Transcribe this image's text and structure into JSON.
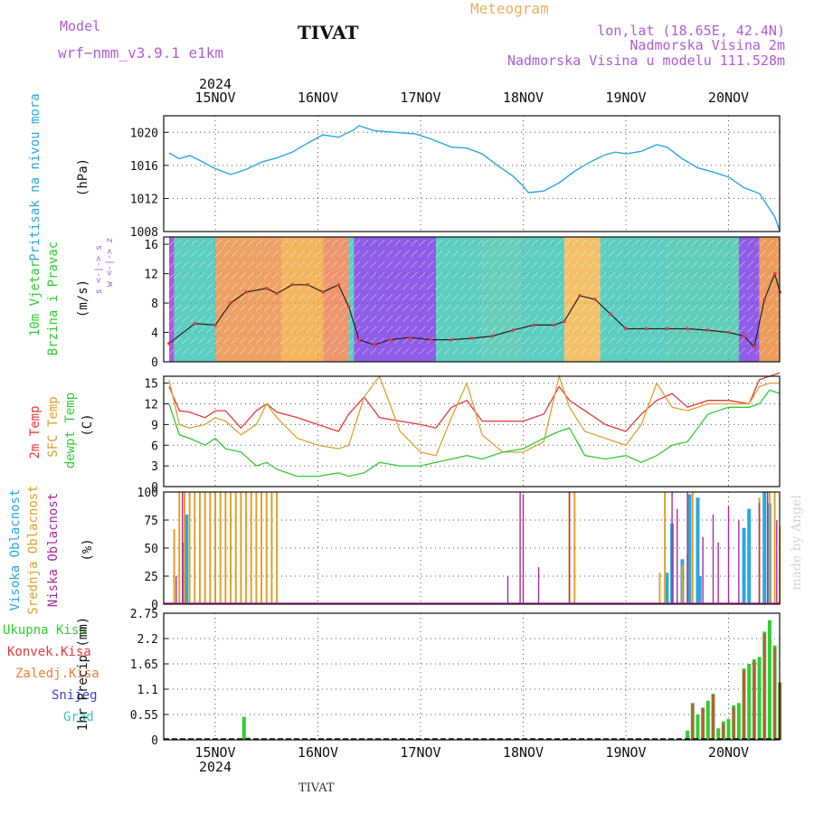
{
  "header": {
    "model_label": "Model",
    "model_name": "wrf−nmm_v3.9.1  e1km",
    "station": "TIVAT",
    "meteogram": "Meteogram",
    "lonlat": "lon,lat (18.65E, 42.4N)",
    "elevation": "Nadmorska Visina 2m",
    "model_elevation": "Nadmorska Visina u modelu 111.528m"
  },
  "footer": {
    "station": "TIVAT",
    "made_by": "made by Angel"
  },
  "colors": {
    "pressure": "#29a8e0",
    "temp2m": "#e8383a",
    "sfc": "#e0a030",
    "dew": "#33cc33",
    "high_cloud": "#29a8e0",
    "mid_cloud": "#e0a030",
    "low_cloud": "#b02aa0",
    "total_precip": "#33cc33",
    "conv_precip": "#e8383a",
    "frozen_precip": "#f07f30",
    "snow": "#3d3de0",
    "graupel": "#3cc8b8",
    "mid_purple": "#b05cd8"
  },
  "time_axis": {
    "year": "2024",
    "labels": [
      "15NOV",
      "16NOV",
      "17NOV",
      "18NOV",
      "19NOV",
      "20NOV"
    ],
    "start_day": 14.55,
    "end_day": 20.5
  },
  "chart_data": [
    {
      "type": "line",
      "panel": "pressure",
      "ylabel_left": "Pritisak na nivou mora",
      "unit": "(hPa)",
      "ylim": [
        1008,
        1022
      ],
      "yticks": [
        "1008",
        "1012",
        "1016",
        "1020"
      ],
      "x_day": [
        14.55,
        14.65,
        14.75,
        14.85,
        15.0,
        15.15,
        15.3,
        15.45,
        15.6,
        15.75,
        15.9,
        16.05,
        16.2,
        16.35,
        16.4,
        16.55,
        16.75,
        16.95,
        17.1,
        17.3,
        17.45,
        17.6,
        17.75,
        17.9,
        18.0,
        18.05,
        18.2,
        18.35,
        18.5,
        18.65,
        18.8,
        18.9,
        19.0,
        19.15,
        19.3,
        19.4,
        19.55,
        19.7,
        19.85,
        20.0,
        20.15,
        20.3,
        20.45,
        20.5
      ],
      "series": [
        {
          "values": [
            1017.5,
            1016.8,
            1017.2,
            1016.6,
            1015.6,
            1014.9,
            1015.5,
            1016.4,
            1016.9,
            1017.6,
            1018.7,
            1019.7,
            1019.4,
            1020.3,
            1020.8,
            1020.2,
            1020.0,
            1019.8,
            1019.2,
            1018.2,
            1018.1,
            1017.4,
            1016.0,
            1014.7,
            1013.5,
            1012.7,
            1012.9,
            1013.9,
            1015.3,
            1016.4,
            1017.3,
            1017.6,
            1017.4,
            1017.7,
            1018.5,
            1018.2,
            1016.8,
            1015.7,
            1015.2,
            1014.6,
            1013.3,
            1012.6,
            1009.8,
            1008.0
          ]
        }
      ]
    },
    {
      "type": "line",
      "panel": "wind",
      "ylabel_left": "10m Vjetar",
      "ylabel_left2": "Brzina i Pravac",
      "unit": "(m/s)",
      "direction_key": "w   <-|->  z",
      "direction_key2": "s <-|-> s",
      "ylim": [
        0,
        17
      ],
      "yticks": [
        "0",
        "4",
        "8",
        "12",
        "16"
      ],
      "x_day": [
        14.55,
        14.8,
        15.0,
        15.15,
        15.3,
        15.5,
        15.6,
        15.75,
        15.9,
        16.05,
        16.2,
        16.3,
        16.4,
        16.55,
        16.7,
        16.9,
        17.1,
        17.3,
        17.5,
        17.7,
        17.9,
        18.1,
        18.3,
        18.4,
        18.55,
        18.7,
        18.85,
        19.0,
        19.2,
        19.4,
        19.6,
        19.8,
        20.0,
        20.15,
        20.25,
        20.35,
        20.45,
        20.5
      ],
      "series": [
        {
          "values": [
            2.5,
            5.2,
            5.0,
            8.0,
            9.5,
            10.0,
            9.3,
            10.5,
            10.5,
            9.5,
            10.5,
            7.5,
            3.0,
            2.3,
            3.0,
            3.3,
            3.0,
            3.0,
            3.2,
            3.5,
            4.3,
            5.0,
            5.0,
            5.5,
            9.0,
            8.5,
            6.5,
            4.5,
            4.5,
            4.5,
            4.5,
            4.3,
            4.0,
            3.5,
            2.0,
            8.5,
            12.0,
            9.5
          ]
        }
      ],
      "color_bands": [
        {
          "from": 14.55,
          "to": 14.6,
          "color": "#9030d0"
        },
        {
          "from": 14.6,
          "to": 15.0,
          "color": "#30c0b0"
        },
        {
          "from": 15.0,
          "to": 15.65,
          "color": "#e8883a"
        },
        {
          "from": 15.65,
          "to": 16.05,
          "color": "#f0a030"
        },
        {
          "from": 16.05,
          "to": 16.3,
          "color": "#e87848"
        },
        {
          "from": 16.3,
          "to": 16.35,
          "color": "#30c0b0"
        },
        {
          "from": 16.35,
          "to": 17.15,
          "color": "#7030e0"
        },
        {
          "from": 17.15,
          "to": 17.6,
          "color": "#30c0b0"
        },
        {
          "from": 17.6,
          "to": 18.0,
          "color": "#3cc0a8"
        },
        {
          "from": 18.0,
          "to": 18.4,
          "color": "#30c0b0"
        },
        {
          "from": 18.4,
          "to": 18.75,
          "color": "#f0b040"
        },
        {
          "from": 18.75,
          "to": 19.4,
          "color": "#30c0b0"
        },
        {
          "from": 19.4,
          "to": 20.1,
          "color": "#35c0a5"
        },
        {
          "from": 20.1,
          "to": 20.3,
          "color": "#7030e0"
        },
        {
          "from": 20.3,
          "to": 20.5,
          "color": "#e88030"
        }
      ]
    },
    {
      "type": "line",
      "panel": "temperature",
      "ylabel_left": "2m Temp",
      "ylabel_left2": "SFC Temp",
      "ylabel_left3": "dewpt Temp",
      "unit": "(C)",
      "ylim": [
        0,
        16
      ],
      "yticks": [
        "0",
        "3",
        "6",
        "9",
        "12",
        "15"
      ],
      "x_day": [
        14.55,
        14.65,
        14.75,
        14.9,
        15.0,
        15.1,
        15.25,
        15.4,
        15.5,
        15.6,
        15.8,
        16.0,
        16.2,
        16.3,
        16.45,
        16.6,
        16.8,
        17.0,
        17.15,
        17.3,
        17.45,
        17.6,
        17.8,
        18.0,
        18.2,
        18.35,
        18.45,
        18.6,
        18.8,
        19.0,
        19.15,
        19.3,
        19.45,
        19.6,
        19.8,
        20.0,
        20.2,
        20.3,
        20.4,
        20.5
      ],
      "series": [
        {
          "name": "2m Temp",
          "values": [
            14.5,
            11.0,
            10.8,
            10.0,
            11.0,
            11.0,
            8.5,
            11.0,
            12.0,
            10.8,
            10.0,
            9.0,
            8.0,
            10.5,
            13.0,
            10.0,
            9.5,
            9.0,
            8.5,
            11.5,
            12.5,
            9.5,
            9.5,
            9.5,
            10.5,
            14.5,
            12.5,
            11.0,
            9.0,
            8.0,
            10.5,
            12.5,
            13.5,
            11.5,
            12.5,
            12.5,
            12.0,
            15.5,
            16.0,
            16.5
          ]
        },
        {
          "name": "SFC Temp",
          "values": [
            15.5,
            9.0,
            8.5,
            9.0,
            10.0,
            9.5,
            7.5,
            9.0,
            12.0,
            10.0,
            7.0,
            6.0,
            5.5,
            6.0,
            13.0,
            16.0,
            8.0,
            5.0,
            4.5,
            10.0,
            15.0,
            7.5,
            5.0,
            5.0,
            6.5,
            16.0,
            11.5,
            8.0,
            7.0,
            6.0,
            9.0,
            15.0,
            11.5,
            11.0,
            12.0,
            12.0,
            12.0,
            14.5,
            15.0,
            15.0
          ]
        },
        {
          "name": "dewpt Temp",
          "values": [
            12.0,
            7.5,
            7.0,
            6.0,
            7.0,
            5.5,
            5.0,
            3.0,
            3.5,
            2.5,
            1.5,
            1.5,
            2.0,
            1.5,
            2.0,
            3.5,
            3.0,
            3.0,
            3.5,
            4.0,
            4.5,
            4.0,
            5.0,
            5.5,
            7.0,
            8.0,
            8.5,
            4.5,
            4.0,
            4.5,
            3.5,
            4.5,
            6.0,
            6.5,
            10.5,
            11.5,
            11.5,
            12.0,
            14.0,
            13.5
          ]
        }
      ]
    },
    {
      "type": "bar",
      "panel": "clouds",
      "ylabel_left": "Visoka Oblacnost",
      "ylabel_left2": "Srednja Oblacnost",
      "ylabel_left3": "Niska  Oblacnost",
      "unit": "(%)",
      "ylim": [
        0,
        100
      ],
      "yticks": [
        "0",
        "25",
        "50",
        "75",
        "100"
      ],
      "series": [
        {
          "name": "Visoka Oblacnost",
          "x_day": [
            14.7,
            14.72,
            19.4,
            19.45,
            19.55,
            19.62,
            19.7,
            19.72,
            20.15,
            20.2,
            20.35,
            20.4
          ],
          "values": [
            55,
            80,
            28,
            72,
            40,
            98,
            95,
            25,
            68,
            85,
            100,
            90
          ]
        },
        {
          "name": "Srednja Oblacnost",
          "x_day": [
            14.6,
            14.65,
            14.7,
            14.75,
            14.8,
            14.85,
            14.9,
            14.95,
            15.0,
            15.05,
            15.1,
            15.15,
            15.2,
            15.25,
            15.3,
            15.35,
            15.4,
            15.45,
            15.5,
            15.55,
            15.6,
            18.45,
            18.5,
            19.33,
            19.38,
            19.55,
            19.6,
            19.65,
            20.3,
            20.4,
            20.45,
            20.5
          ],
          "values": [
            67,
            100,
            100,
            100,
            100,
            100,
            100,
            100,
            100,
            100,
            100,
            100,
            100,
            100,
            100,
            100,
            100,
            100,
            100,
            100,
            100,
            100,
            100,
            28,
            100,
            35,
            45,
            100,
            95,
            100,
            100,
            70
          ]
        },
        {
          "name": "Niska  Oblacnost",
          "x_day": [
            14.62,
            14.68,
            17.85,
            17.97,
            18.0,
            18.15,
            18.45,
            19.45,
            19.5,
            19.6,
            19.75,
            19.85,
            19.9,
            20.0,
            20.1,
            20.3,
            20.38,
            20.47
          ],
          "values": [
            25,
            100,
            25,
            100,
            98,
            33,
            100,
            100,
            85,
            100,
            60,
            80,
            55,
            87,
            75,
            90,
            100,
            75
          ]
        }
      ]
    },
    {
      "type": "bar",
      "panel": "precip",
      "legend": [
        "Ukupna  Kisa",
        "Konvek.Kisa",
        "Zaledj.Kisa",
        "Snijeg",
        "Grad"
      ],
      "ylabel_right": "1hr Precip (mm)",
      "ylim": [
        0,
        2.75
      ],
      "yticks": [
        "0",
        "0.55",
        "1.1",
        "1.65",
        "2.2",
        "2.75"
      ],
      "series": [
        {
          "name": "Ukupna  Kisa",
          "x_day": [
            15.28,
            15.32,
            17.95,
            19.6,
            19.65,
            19.7,
            19.75,
            19.8,
            19.85,
            19.9,
            19.95,
            20.0,
            20.05,
            20.1,
            20.15,
            20.2,
            20.25,
            20.3,
            20.35,
            20.4,
            20.45,
            20.5
          ],
          "values": [
            0.5,
            0.05,
            0.03,
            0.2,
            0.8,
            0.55,
            0.7,
            0.85,
            1.0,
            0.25,
            0.4,
            0.45,
            0.75,
            0.8,
            1.55,
            1.65,
            1.75,
            1.8,
            2.35,
            2.6,
            2.05,
            1.25
          ]
        },
        {
          "name": "Konvek.Kisa",
          "x_day": [
            19.65,
            19.75,
            19.85,
            19.95,
            20.05,
            20.15,
            20.25,
            20.35,
            20.45,
            20.5
          ],
          "values": [
            0.78,
            0.68,
            0.98,
            0.35,
            0.7,
            1.5,
            1.7,
            2.3,
            2.0,
            1.22
          ]
        }
      ]
    }
  ]
}
